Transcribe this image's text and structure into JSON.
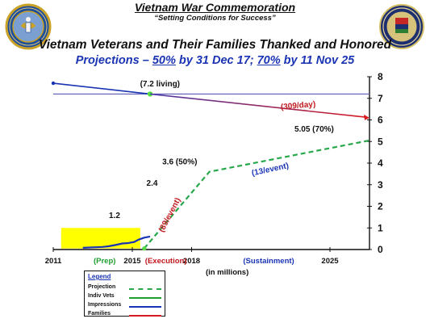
{
  "header": {
    "title": "Vietnam War Commemoration",
    "subtitle": "“Setting Conditions for Success”",
    "left_seal_icon": "department-of-defense-seal-icon",
    "right_seal_icon": "vietnam-war-commemoration-seal-icon"
  },
  "chart_title": {
    "main": "Vietnam Veterans and Their Families Thanked and Honored",
    "subtitle_prefix": "Projections – ",
    "subtitle_pct1": "50%",
    "subtitle_mid": " by 31 Dec 17; ",
    "subtitle_pct2": "70%",
    "subtitle_suffix": " by 11 Nov 25"
  },
  "chart_data": {
    "type": "line",
    "title": "Vietnam Veterans and Their Families Thanked and Honored",
    "subtitle": "Projections – 50% by 31 Dec 17; 70% by 11 Nov 25",
    "xlabel": "",
    "ylabel": "",
    "units_label": "(in millions)",
    "xlim": [
      2011,
      2027
    ],
    "ylim": [
      0,
      8
    ],
    "x_ticks": [
      2011,
      2015,
      2018,
      2025
    ],
    "y_ticks": [
      0,
      1,
      2,
      3,
      4,
      5,
      6,
      7,
      8
    ],
    "phases": [
      {
        "label": "(Prep)",
        "color": "#1f9e2e"
      },
      {
        "label": "(Execution)",
        "color": "#c0181d"
      },
      {
        "label": "(Sustainment)",
        "color": "#1a34b4"
      }
    ],
    "reference_line_y": 7.2,
    "series": [
      {
        "name": "Indiv Vets",
        "color": "#1a34b4",
        "x": [
          2011,
          2015.9
        ],
        "y": [
          7.7,
          7.2
        ]
      },
      {
        "name": "Families",
        "color": "#8a2f88",
        "x": [
          2015.9,
          2027
        ],
        "y": [
          7.2,
          6.1
        ]
      },
      {
        "name": "Impressions",
        "color": "#1a34b4",
        "x": [
          2012.5,
          2013.0,
          2013.5,
          2013.8,
          2014.2,
          2014.5,
          2014.8,
          2015.1,
          2015.3,
          2015.6,
          2015.9
        ],
        "y": [
          0.08,
          0.1,
          0.12,
          0.15,
          0.22,
          0.28,
          0.3,
          0.35,
          0.45,
          0.55,
          0.6
        ]
      },
      {
        "name": "Projection",
        "color": "#27a84a",
        "x": [
          2015.6,
          2018.9,
          2027
        ],
        "y": [
          0.05,
          3.6,
          5.05
        ]
      }
    ],
    "annotations": [
      {
        "text": "(7.2 living)",
        "x": 2016.4,
        "y": 7.55
      },
      {
        "text": "(309/day)",
        "x": 2023.4,
        "y": 6.55,
        "color": "#c0181d"
      },
      {
        "text": "5.05 (70%)",
        "x": 2024.2,
        "y": 5.45
      },
      {
        "text": "3.6 (50%)",
        "x": 2017.4,
        "y": 3.95
      },
      {
        "text": "(13/event)",
        "x": 2022.0,
        "y": 3.6,
        "color": "#1a34b4"
      },
      {
        "text": "2.4",
        "x": 2016.0,
        "y": 2.95
      },
      {
        "text": "1.2",
        "x": 2014.1,
        "y": 1.45
      },
      {
        "text": "(89/event)",
        "x": 2017.0,
        "y": 1.55,
        "color": "#c0181d"
      }
    ]
  },
  "legend": {
    "title": "Legend",
    "items": [
      {
        "label": "Projection",
        "color": "#27a84a",
        "style": "dashed"
      },
      {
        "label": "Indiv Vets",
        "color": "#1f9e2e",
        "style": "solid"
      },
      {
        "label": "Impressions",
        "color": "#1a34b4",
        "style": "solid"
      },
      {
        "label": "Families",
        "color": "#d71a1f",
        "style": "solid"
      }
    ]
  }
}
